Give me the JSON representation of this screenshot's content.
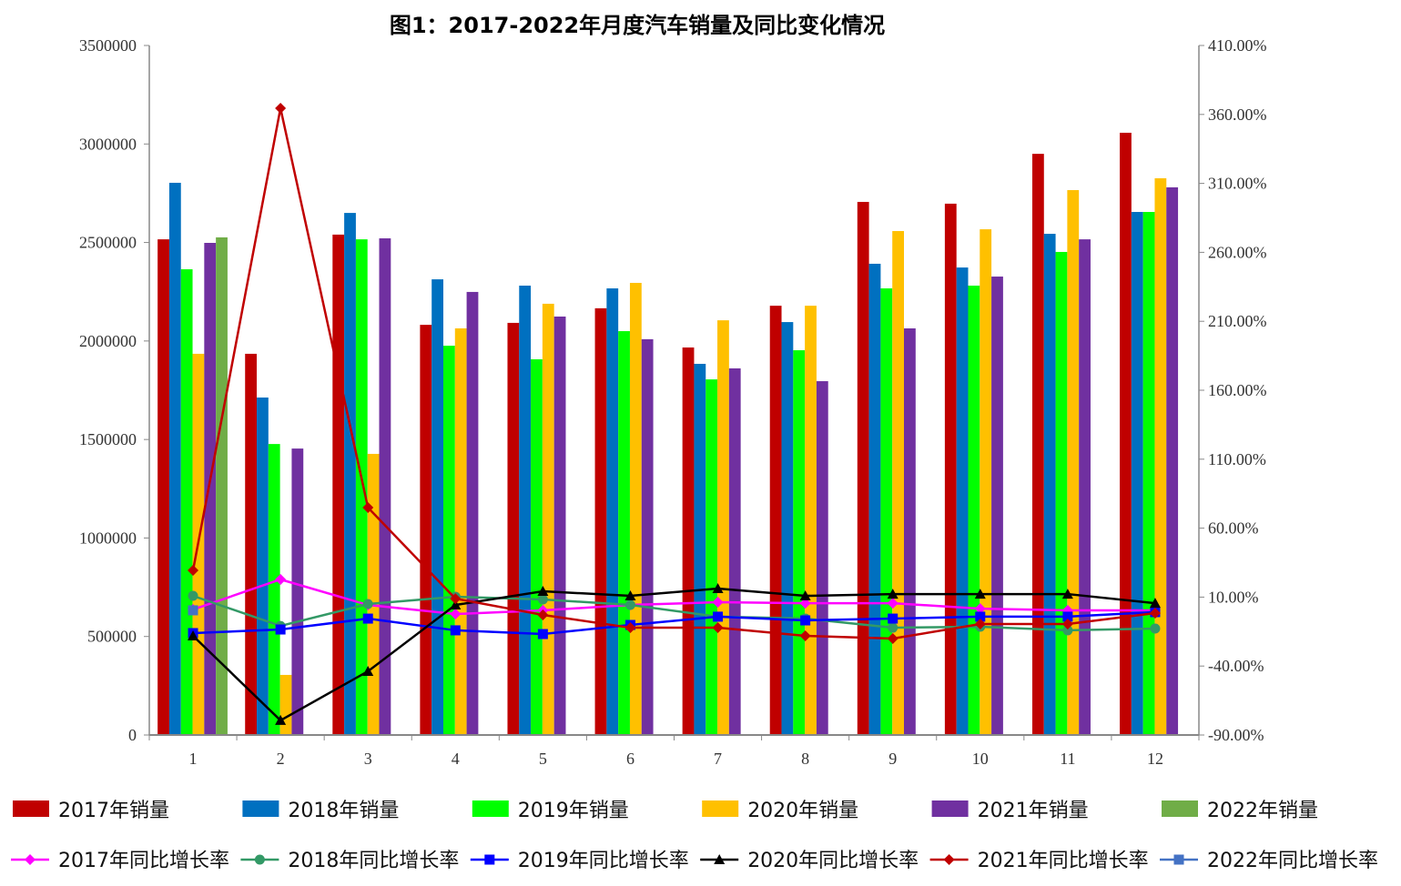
{
  "chart_data": {
    "type": "bar+line",
    "title": "图1：2017-2022年月度汽车销量及同比变化情况",
    "categories": [
      "1",
      "2",
      "3",
      "4",
      "5",
      "6",
      "7",
      "8",
      "9",
      "10",
      "11",
      "12"
    ],
    "y_left": {
      "range": [
        0,
        3500000
      ],
      "ticks": [
        "0",
        "500000",
        "1000000",
        "1500000",
        "2000000",
        "2500000",
        "3000000",
        "3500000"
      ]
    },
    "y_right": {
      "range": [
        -90,
        410
      ],
      "ticks": [
        "-90.00%",
        "-40.00%",
        "10.00%",
        "60.00%",
        "110.00%",
        "160.00%",
        "210.00%",
        "260.00%",
        "310.00%",
        "360.00%",
        "410.00%"
      ]
    },
    "grid": false,
    "legend": "bottom",
    "bar_series": [
      {
        "name": "2017年销量",
        "color": "#C00000",
        "values": [
          2516000,
          1935000,
          2540000,
          2082000,
          2092000,
          2166000,
          1967000,
          2179000,
          2706000,
          2697000,
          2950000,
          3057000
        ]
      },
      {
        "name": "2018年销量",
        "color": "#0070C0",
        "values": [
          2803000,
          1713000,
          2650000,
          2313000,
          2281000,
          2267000,
          1884000,
          2096000,
          2392000,
          2373000,
          2544000,
          2655000
        ]
      },
      {
        "name": "2019年销量",
        "color": "#00FF00",
        "values": [
          2364000,
          1477000,
          2516000,
          1976000,
          1907000,
          2050000,
          1805000,
          1953000,
          2267000,
          2281000,
          2452000,
          2655000
        ]
      },
      {
        "name": "2020年销量",
        "color": "#FFC000",
        "values": [
          1935000,
          305000,
          1427000,
          2064000,
          2189000,
          2295000,
          2105000,
          2179000,
          2558000,
          2567000,
          2766000,
          2826000
        ]
      },
      {
        "name": "2021年销量",
        "color": "#7030A0",
        "values": [
          2498000,
          1454000,
          2521000,
          2249000,
          2124000,
          2009000,
          1861000,
          1796000,
          2064000,
          2327000,
          2516000,
          2780000
        ]
      },
      {
        "name": "2022年销量",
        "color": "#70AD47",
        "values": [
          2526000,
          null,
          null,
          null,
          null,
          null,
          null,
          null,
          null,
          null,
          null,
          null
        ]
      }
    ],
    "line_series": [
      {
        "name": "2017年同比增长率",
        "color": "#FF00FF",
        "marker": "diamond",
        "values": [
          1.0,
          22.8,
          4.3,
          -2.3,
          0.4,
          4.3,
          6.3,
          5.6,
          5.6,
          1.6,
          0.4,
          0.4
        ]
      },
      {
        "name": "2018年同比增长率",
        "color": "#339966",
        "marker": "circle",
        "values": [
          10.9,
          -10.9,
          5.0,
          10.3,
          8.3,
          4.3,
          -4.2,
          -5.6,
          -12.2,
          -11.5,
          -14.1,
          -12.8
        ]
      },
      {
        "name": "2019年同比增长率",
        "color": "#0000FF",
        "marker": "square",
        "values": [
          -16.1,
          -13.5,
          -5.6,
          -14.1,
          -16.8,
          -10.2,
          -4.2,
          -6.9,
          -5.6,
          -4.2,
          -4.2,
          -0.9
        ]
      },
      {
        "name": "2020年同比增长率",
        "color": "#000000",
        "marker": "triangle",
        "values": [
          -18.1,
          -79.4,
          -43.8,
          4.3,
          14.2,
          10.9,
          16.2,
          10.9,
          12.2,
          12.2,
          12.2,
          5.6
        ]
      },
      {
        "name": "2021年同比增长率",
        "color": "#C00000",
        "marker": "diamond",
        "values": [
          29.4,
          364.5,
          74.9,
          8.9,
          -2.9,
          -12.2,
          -12.2,
          -18.1,
          -20.1,
          -9.5,
          -9.5,
          -1.6
        ]
      },
      {
        "name": "2022年同比增长率",
        "color": "#4472C4",
        "marker": "square",
        "values": [
          0.4,
          null,
          null,
          null,
          null,
          null,
          null,
          null,
          null,
          null,
          null,
          null
        ]
      }
    ]
  }
}
